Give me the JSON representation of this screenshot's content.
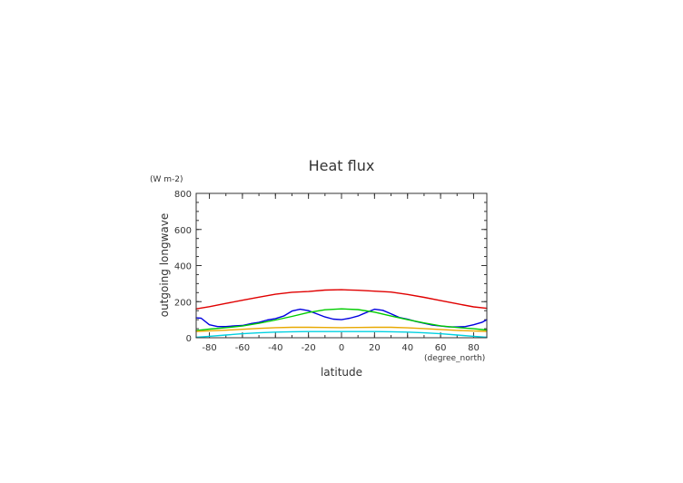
{
  "chart_data": {
    "type": "line",
    "title": "Heat flux",
    "xlabel": "latitude",
    "ylabel": "outgoing longwave",
    "xunit": "(degree_north)",
    "yunit": "(W m-2)",
    "xlim": [
      -88,
      88
    ],
    "ylim": [
      0,
      800
    ],
    "xticks": [
      -80,
      -60,
      -40,
      -20,
      0,
      20,
      40,
      60,
      80
    ],
    "yticks": [
      0,
      200,
      400,
      600,
      800
    ],
    "series": [
      {
        "color": "#e00000",
        "x": [
          -88,
          -80,
          -70,
          -60,
          -50,
          -40,
          -30,
          -20,
          -10,
          0,
          10,
          20,
          30,
          40,
          50,
          60,
          70,
          80,
          88
        ],
        "y": [
          160,
          172,
          190,
          208,
          225,
          241,
          252,
          256,
          264,
          266,
          263,
          258,
          253,
          240,
          224,
          206,
          188,
          171,
          163
        ]
      },
      {
        "color": "#0000e0",
        "x": [
          -88,
          -85,
          -80,
          -75,
          -70,
          -65,
          -60,
          -55,
          -50,
          -45,
          -40,
          -35,
          -30,
          -25,
          -20,
          -15,
          -10,
          -5,
          0,
          5,
          10,
          15,
          20,
          25,
          30,
          35,
          40,
          45,
          50,
          55,
          60,
          65,
          70,
          75,
          80,
          85,
          88
        ],
        "y": [
          110,
          108,
          72,
          62,
          62,
          66,
          68,
          78,
          85,
          98,
          106,
          120,
          148,
          158,
          150,
          133,
          115,
          103,
          100,
          108,
          120,
          140,
          158,
          152,
          133,
          112,
          103,
          90,
          80,
          70,
          65,
          60,
          60,
          62,
          72,
          85,
          100
        ]
      },
      {
        "color": "#00cc00",
        "x": [
          -88,
          -80,
          -70,
          -60,
          -50,
          -40,
          -30,
          -20,
          -10,
          0,
          10,
          20,
          30,
          40,
          50,
          60,
          70,
          80,
          88
        ],
        "y": [
          40,
          48,
          56,
          65,
          80,
          98,
          118,
          140,
          155,
          160,
          156,
          142,
          120,
          100,
          82,
          66,
          57,
          50,
          43
        ]
      },
      {
        "color": "#e8a800",
        "x": [
          -88,
          -80,
          -70,
          -60,
          -50,
          -40,
          -30,
          -20,
          -10,
          0,
          10,
          20,
          30,
          40,
          50,
          60,
          70,
          80,
          88
        ],
        "y": [
          35,
          38,
          42,
          47,
          52,
          56,
          58,
          58,
          57,
          56,
          57,
          58,
          58,
          55,
          51,
          46,
          41,
          37,
          35
        ]
      },
      {
        "color": "#00d0e0",
        "x": [
          -88,
          -80,
          -70,
          -60,
          -50,
          -40,
          -30,
          -20,
          -10,
          0,
          10,
          20,
          30,
          40,
          50,
          60,
          70,
          80,
          88
        ],
        "y": [
          3,
          8,
          15,
          22,
          27,
          31,
          33,
          34,
          34,
          34,
          34,
          34,
          33,
          31,
          27,
          22,
          15,
          8,
          3
        ]
      }
    ]
  }
}
